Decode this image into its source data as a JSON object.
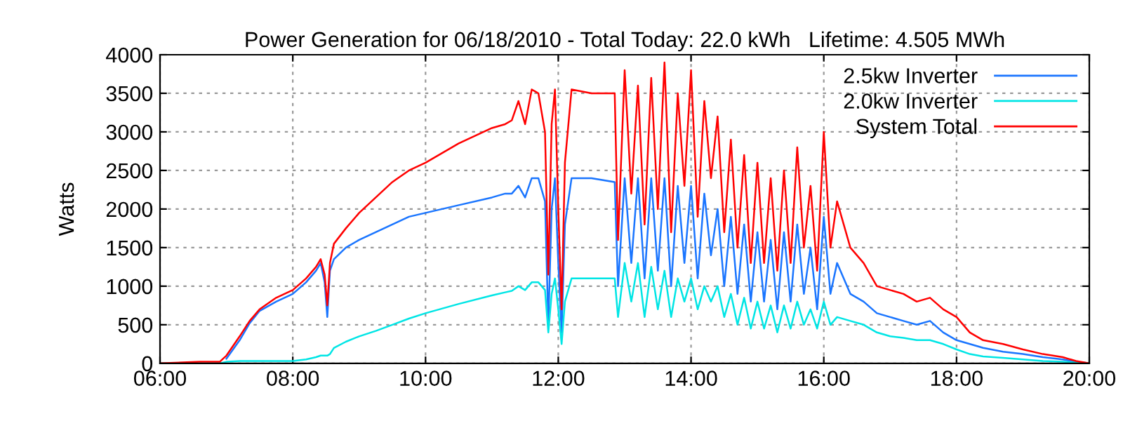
{
  "chart_data": {
    "type": "line",
    "title": "Power Generation for 06/18/2010 - Total Today: 22.0 kWh   Lifetime: 4.505 MWh",
    "ylabel": "Watts",
    "x": [
      6.0,
      6.6,
      6.9,
      7.0,
      7.2,
      7.35,
      7.5,
      7.75,
      8.0,
      8.2,
      8.35,
      8.42,
      8.48,
      8.52,
      8.56,
      8.62,
      8.8,
      9.0,
      9.25,
      9.5,
      9.75,
      10.0,
      10.5,
      11.0,
      11.2,
      11.3,
      11.4,
      11.5,
      11.6,
      11.7,
      11.8,
      11.85,
      11.9,
      11.95,
      12.0,
      12.05,
      12.1,
      12.2,
      12.5,
      12.85,
      12.9,
      13.0,
      13.1,
      13.2,
      13.3,
      13.4,
      13.5,
      13.6,
      13.7,
      13.8,
      13.9,
      14.0,
      14.1,
      14.2,
      14.3,
      14.4,
      14.5,
      14.6,
      14.7,
      14.8,
      14.9,
      15.0,
      15.1,
      15.2,
      15.3,
      15.4,
      15.5,
      15.6,
      15.7,
      15.8,
      15.9,
      16.0,
      16.1,
      16.2,
      16.4,
      16.6,
      16.8,
      17.0,
      17.2,
      17.4,
      17.6,
      17.8,
      18.0,
      18.2,
      18.4,
      18.7,
      19.0,
      19.3,
      19.6,
      19.8,
      20.0
    ],
    "series": [
      {
        "name": "2.5kw Inverter",
        "color": "#1a75ff",
        "values": [
          null,
          null,
          null,
          60,
          300,
          520,
          680,
          800,
          900,
          1050,
          1200,
          1300,
          1050,
          600,
          1200,
          1350,
          1500,
          1600,
          1700,
          1800,
          1900,
          1950,
          2050,
          2150,
          2200,
          2200,
          2300,
          2150,
          2400,
          2400,
          2100,
          500,
          2000,
          2400,
          1300,
          400,
          1800,
          2400,
          2400,
          2350,
          1000,
          2400,
          1300,
          2400,
          1100,
          2400,
          1200,
          2400,
          1000,
          2300,
          1300,
          2300,
          1100,
          2200,
          1400,
          2000,
          1000,
          1900,
          900,
          1800,
          800,
          1700,
          800,
          1600,
          700,
          1700,
          800,
          1800,
          900,
          1500,
          700,
          1900,
          900,
          1300,
          900,
          800,
          650,
          600,
          550,
          500,
          550,
          400,
          300,
          250,
          200,
          150,
          120,
          80,
          50,
          20,
          0
        ]
      },
      {
        "name": "2.0kw Inverter",
        "color": "#00e5e5",
        "values": [
          0,
          0,
          0,
          20,
          30,
          30,
          30,
          30,
          30,
          50,
          80,
          100,
          100,
          100,
          120,
          200,
          280,
          350,
          420,
          500,
          580,
          650,
          770,
          880,
          920,
          940,
          1000,
          950,
          1050,
          1050,
          950,
          400,
          900,
          1100,
          700,
          250,
          800,
          1100,
          1100,
          1100,
          600,
          1300,
          800,
          1300,
          600,
          1250,
          700,
          1200,
          600,
          1100,
          800,
          1100,
          700,
          1000,
          800,
          1000,
          600,
          900,
          500,
          850,
          450,
          800,
          450,
          750,
          400,
          750,
          450,
          800,
          500,
          700,
          450,
          800,
          500,
          600,
          550,
          500,
          400,
          350,
          330,
          300,
          300,
          250,
          180,
          120,
          90,
          70,
          50,
          30,
          20,
          10,
          0
        ]
      },
      {
        "name": "System Total",
        "color": "#ff0000",
        "values": [
          0,
          20,
          20,
          100,
          350,
          550,
          700,
          850,
          950,
          1100,
          1250,
          1350,
          1150,
          750,
          1300,
          1550,
          1750,
          1950,
          2150,
          2350,
          2500,
          2600,
          2850,
          3050,
          3100,
          3150,
          3400,
          3100,
          3550,
          3500,
          3000,
          1150,
          3100,
          3550,
          2000,
          700,
          2600,
          3550,
          3500,
          3500,
          1600,
          3800,
          2200,
          3600,
          1800,
          3700,
          2000,
          3900,
          1700,
          3500,
          2300,
          3800,
          1900,
          3400,
          2400,
          3200,
          1700,
          2900,
          1500,
          2700,
          1300,
          2600,
          1300,
          2400,
          1200,
          2500,
          1300,
          2800,
          1500,
          2300,
          1200,
          3000,
          1500,
          2100,
          1500,
          1300,
          1000,
          950,
          900,
          800,
          850,
          700,
          600,
          400,
          300,
          250,
          180,
          120,
          80,
          30,
          0
        ]
      }
    ],
    "xlim": [
      6,
      20
    ],
    "xticks": [
      {
        "value": 6,
        "label": "06:00"
      },
      {
        "value": 8,
        "label": "08:00"
      },
      {
        "value": 10,
        "label": "10:00"
      },
      {
        "value": 12,
        "label": "12:00"
      },
      {
        "value": 14,
        "label": "14:00"
      },
      {
        "value": 16,
        "label": "16:00"
      },
      {
        "value": 18,
        "label": "18:00"
      },
      {
        "value": 20,
        "label": "20:00"
      }
    ],
    "ylim": [
      0,
      4000
    ],
    "yticks": [
      0,
      500,
      1000,
      1500,
      2000,
      2500,
      3000,
      3500,
      4000
    ],
    "grid": true,
    "legend": "top right"
  }
}
